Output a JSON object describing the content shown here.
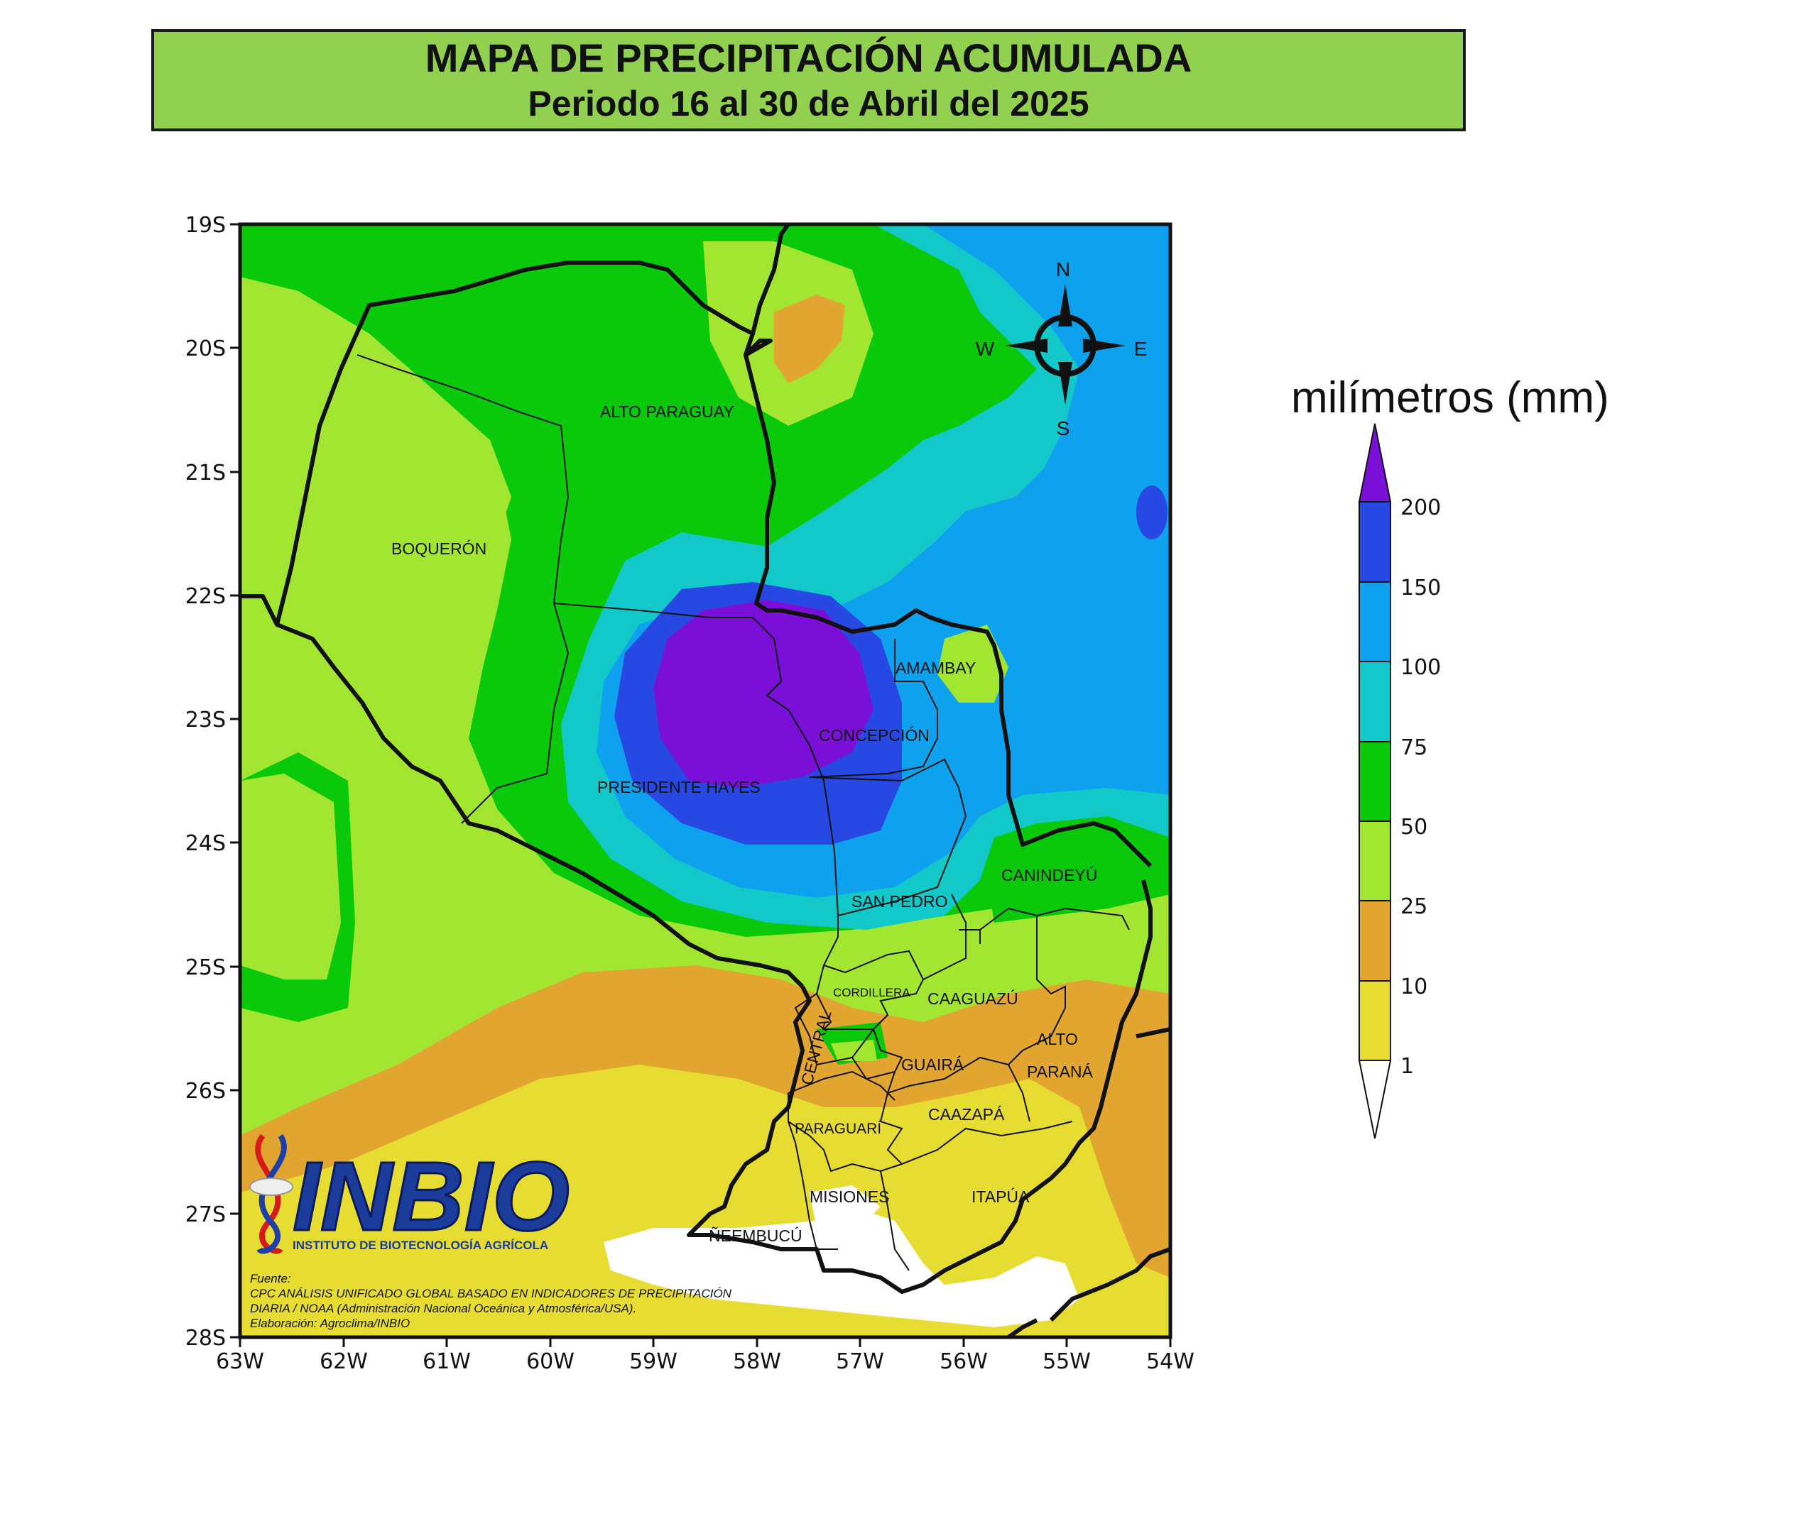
{
  "title": {
    "line1": "MAPA DE PRECIPITACIÓN ACUMULADA",
    "line2": "Periodo 16 al 30 de Abril del 2025"
  },
  "axes": {
    "lat_labels": [
      "19S",
      "20S",
      "21S",
      "22S",
      "23S",
      "24S",
      "25S",
      "26S",
      "27S",
      "28S"
    ],
    "lon_labels": [
      "63W",
      "62W",
      "61W",
      "60W",
      "59W",
      "58W",
      "57W",
      "56W",
      "55W",
      "54W"
    ]
  },
  "compass": {
    "n": "N",
    "s": "S",
    "e": "E",
    "w": "W"
  },
  "departments": {
    "alto_paraguay": "ALTO PARAGUAY",
    "boqueron": "BOQUERÓN",
    "presidente_hayes": "PRESIDENTE HAYES",
    "concepcion": "CONCEPCIÓN",
    "amambay": "AMAMBAY",
    "canindeyu": "CANINDEYÚ",
    "san_pedro": "SAN PEDRO",
    "cordillera": "CORDILLERA",
    "caaguazu": "CAAGUAZÚ",
    "central": "CENTRAL",
    "guaira": "GUAIRÁ",
    "alto_parana_1": "ALTO",
    "alto_parana_2": "PARANÁ",
    "paraguari": "PARAGUARÍ",
    "caazapa": "CAAZAPÁ",
    "misiones": "MISIONES",
    "itapua": "ITAPÚA",
    "neembucu": "ÑEEMBUCÚ"
  },
  "legend": {
    "title": "milímetros (mm)",
    "levels": [
      "200",
      "150",
      "100",
      "75",
      "50",
      "25",
      "10",
      "1"
    ],
    "colors": {
      "over200": "#7a10d8",
      "c150": "#2848e4",
      "c100": "#0ea2ee",
      "c75": "#13c8c8",
      "c50": "#0ac80a",
      "c25": "#a2e632",
      "c10": "#e2a630",
      "c1": "#e6dc32",
      "below1": "#ffffff"
    }
  },
  "logo": {
    "name": "INBIO",
    "subtitle": "INSTITUTO DE BIOTECNOLOGÍA AGRÍCOLA"
  },
  "source": {
    "label": "Fuente:",
    "line1": "CPC ANÁLISIS UNIFICADO GLOBAL BASADO EN INDICADORES DE PRECIPITACIÓN",
    "line2": "DIARIA / NOAA (Administración Nacional Oceánica y Atmosférica/USA).",
    "line3": "Elaboración: Agroclima/INBIO"
  }
}
